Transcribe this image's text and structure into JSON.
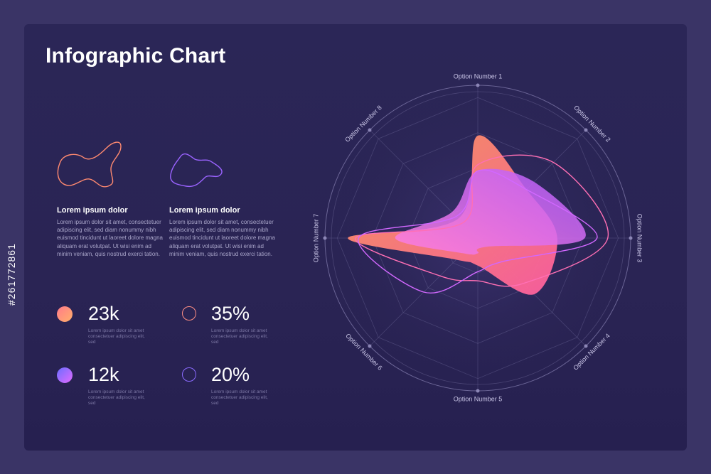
{
  "title": "Infographic Chart",
  "columns": [
    {
      "heading": "Lorem ipsum dolor",
      "body": "Lorem ipsum dolor sit amet, consectetuer adipiscing elit, sed diam nonummy nibh euismod tincidunt ut laoreet dolore magna aliquam erat volutpat. Ut wisi enim ad minim veniam, quis nostrud exerci tation.",
      "blob_color": "#ff8a70"
    },
    {
      "heading": "Lorem ipsum dolor",
      "body": "Lorem ipsum dolor sit amet, consectetuer adipiscing elit, sed diam nonummy nibh euismod tincidunt ut laoreet dolore magna aliquam erat volutpat. Ut wisi enim ad minim veniam, quis nostrud exerci tation.",
      "blob_color": "#9a63ff"
    }
  ],
  "stats": [
    {
      "value": "23k",
      "caption": "Lorem ipsum dolor sit amet consectetuer adipiscing elit, sed",
      "style": "filled",
      "color_a": "#ff7a8a",
      "color_b": "#ffb06a"
    },
    {
      "value": "35%",
      "caption": "Lorem ipsum dolor sit amet consectetuer adipiscing elit, sed",
      "style": "ring",
      "color_a": "#ff8f84"
    },
    {
      "value": "12k",
      "caption": "Lorem ipsum dolor sit amet consectetuer adipiscing elit, sed",
      "style": "filled",
      "color_a": "#6a6cff",
      "color_b": "#e26bff"
    },
    {
      "value": "20%",
      "caption": "Lorem ipsum dolor sit amet consectetuer adipiscing elit, sed",
      "style": "ring",
      "color_a": "#8b6bff"
    }
  ],
  "chart_data": {
    "type": "radar",
    "axes": [
      "Option Number 1",
      "Option Number 2",
      "Option Number 3",
      "Option Number 4",
      "Option Number 5",
      "Option Number 6",
      "Option Number 7",
      "Option Number 8"
    ],
    "range": [
      0,
      1
    ],
    "rings": 4,
    "series": [
      {
        "values": [
          0.67,
          0.45,
          0.52,
          0.52,
          0.18,
          0.2,
          0.85,
          0.18
        ],
        "style": "filled",
        "colors": [
          "#ff9a5a",
          "#ff5fa0"
        ]
      },
      {
        "values": [
          0.44,
          0.52,
          0.7,
          0.08,
          0.1,
          0.14,
          0.54,
          0.24
        ],
        "style": "filled",
        "colors": [
          "#b45cff",
          "#ff7fe0"
        ]
      },
      {
        "values": [
          0.48,
          0.7,
          0.85,
          0.42,
          0.28,
          0.35,
          0.8,
          0.14
        ],
        "style": "outline",
        "colors": [
          "#ff6fb4"
        ]
      },
      {
        "values": [
          0.44,
          0.45,
          0.78,
          0.22,
          0.22,
          0.5,
          0.78,
          0.2
        ],
        "style": "outline",
        "colors": [
          "#d268ff"
        ]
      }
    ]
  },
  "colors": {
    "background": "#3a3466",
    "panel": "#2a2454",
    "grid": "#6b6596"
  },
  "side_id": "#261772861"
}
